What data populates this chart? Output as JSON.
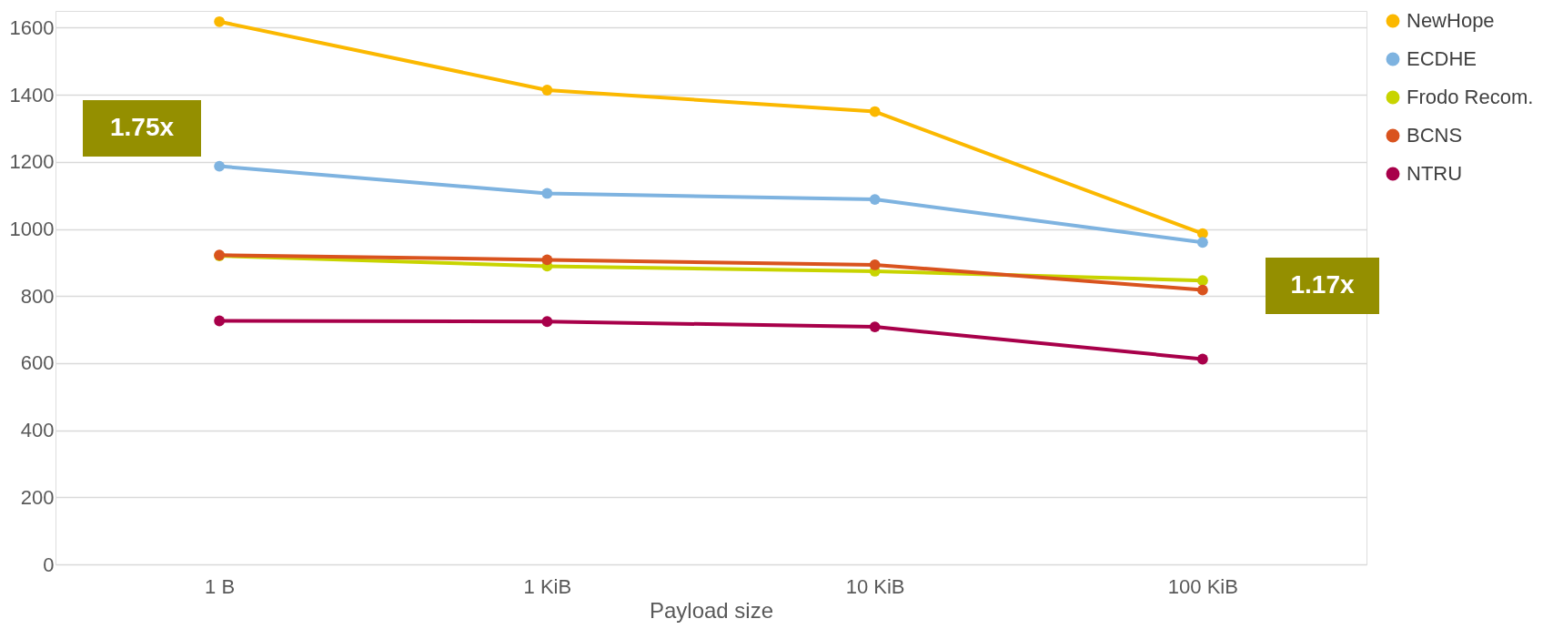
{
  "chart_data": {
    "type": "line",
    "xlabel": "Payload size",
    "categories": [
      "1 B",
      "1 KiB",
      "10 KiB",
      "100 KiB"
    ],
    "ylim": [
      0,
      1650
    ],
    "yticks": [
      0,
      200,
      400,
      600,
      800,
      1000,
      1200,
      1400,
      1600
    ],
    "grid": "y",
    "legend": "right",
    "marker": "circle",
    "line_style": "solid",
    "series": [
      {
        "name": "NewHope",
        "color": "#fbb800",
        "values": [
          1618,
          1414,
          1350,
          986
        ]
      },
      {
        "name": "ECDHE",
        "color": "#7eb3e0",
        "values": [
          1187,
          1106,
          1088,
          960
        ]
      },
      {
        "name": "Frodo Recom.",
        "color": "#c8d400",
        "values": [
          920,
          889,
          874,
          846
        ]
      },
      {
        "name": "BCNS",
        "color": "#d9531e",
        "values": [
          922,
          908,
          893,
          818
        ]
      },
      {
        "name": "NTRU",
        "color": "#a8004a",
        "values": [
          726,
          724,
          708,
          612
        ]
      }
    ],
    "annotations": [
      "1.75x",
      "1.17x"
    ]
  }
}
